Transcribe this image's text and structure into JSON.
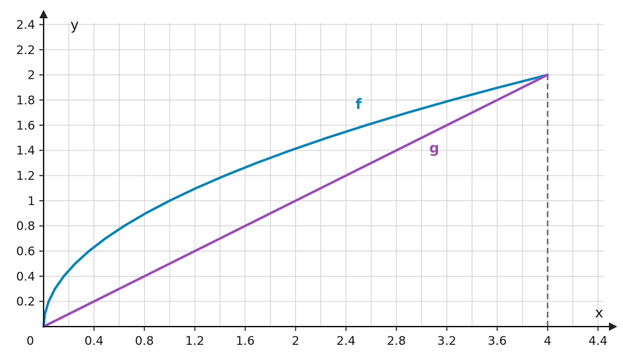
{
  "chart_data": {
    "type": "line",
    "xlabel": "x",
    "ylabel": "y",
    "xlim": [
      0,
      4.4
    ],
    "ylim": [
      0,
      2.4
    ],
    "grid": true,
    "origin_label": "0",
    "x_ticks": [
      0.4,
      0.8,
      1.2,
      1.6,
      2,
      2.4,
      2.8,
      3.2,
      3.6,
      4,
      4.4
    ],
    "x_tick_labels": [
      "0.4",
      "0.8",
      "1.2",
      "1.6",
      "2",
      "2.4",
      "2.8",
      "3.2",
      "3.6",
      "4",
      "4.4"
    ],
    "y_ticks": [
      0.2,
      0.4,
      0.6,
      0.8,
      1,
      1.2,
      1.4,
      1.6,
      1.8,
      2,
      2.2,
      2.4
    ],
    "y_tick_labels": [
      "0.2",
      "0.4",
      "0.6",
      "0.8",
      "1",
      "1.2",
      "1.4",
      "1.6",
      "1.8",
      "2",
      "2.2",
      "2.4"
    ],
    "series": [
      {
        "name": "f",
        "color": "#0a84b4",
        "x": [
          0,
          0.01,
          0.04,
          0.09,
          0.16,
          0.25,
          0.36,
          0.49,
          0.64,
          0.81,
          1,
          1.21,
          1.44,
          1.69,
          1.96,
          2.25,
          2.56,
          2.89,
          3.24,
          3.61,
          4
        ],
        "y": [
          0,
          0.1,
          0.2,
          0.3,
          0.4,
          0.5,
          0.6,
          0.7,
          0.8,
          0.9,
          1,
          1.1,
          1.2,
          1.3,
          1.4,
          1.5,
          1.6,
          1.7,
          1.8,
          1.9,
          2
        ],
        "label_at": [
          2.5,
          1.73
        ]
      },
      {
        "name": "g",
        "color": "#9b4fb5",
        "x": [
          0,
          4
        ],
        "y": [
          0,
          2
        ],
        "label_at": [
          3.1,
          1.38
        ]
      }
    ],
    "annotations": [
      {
        "type": "dashed-vertical",
        "x": 4,
        "y_from": 0,
        "y_to": 2,
        "color": "#6b6b6b"
      }
    ]
  }
}
